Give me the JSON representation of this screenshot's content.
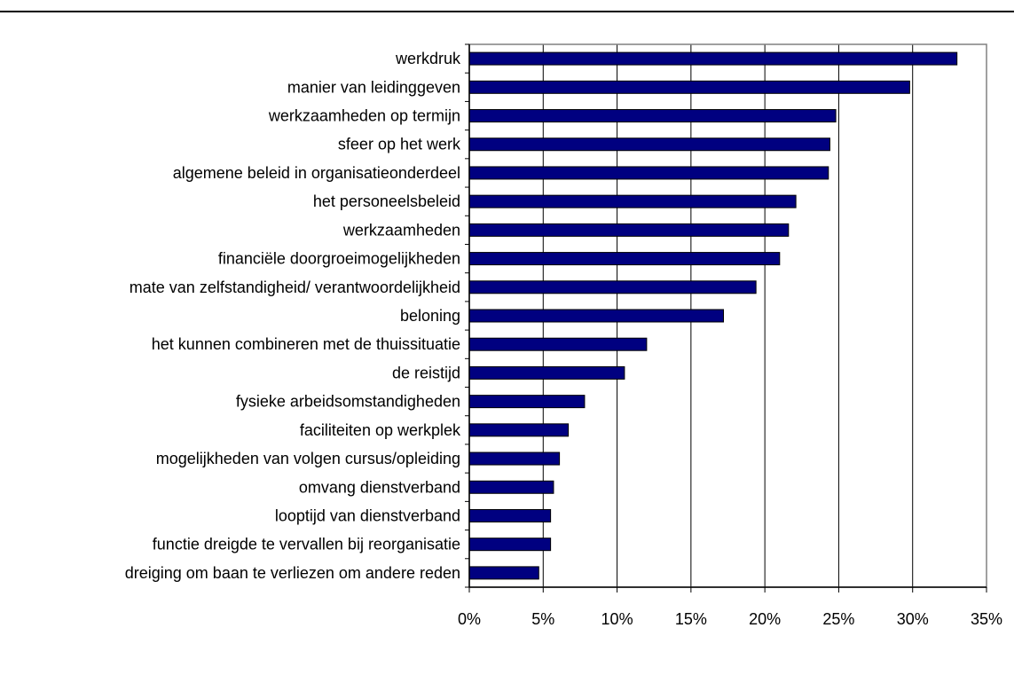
{
  "chart_data": {
    "type": "bar",
    "orientation": "horizontal",
    "title": "",
    "xlabel": "",
    "ylabel": "",
    "xlim": [
      0,
      35
    ],
    "x_tick_values": [
      0,
      5,
      10,
      15,
      20,
      25,
      30,
      35
    ],
    "x_tick_labels": [
      "0%",
      "5%",
      "10%",
      "15%",
      "20%",
      "25%",
      "30%",
      "35%"
    ],
    "grid": "vertical gridlines",
    "legend": "none",
    "bar_color": "#000080",
    "categories": [
      "werkdruk",
      "manier van leidinggeven",
      "werkzaamheden op termijn",
      "sfeer op het werk",
      "algemene beleid in organisatieonderdeel",
      "het personeelsbeleid",
      "werkzaamheden",
      "financiële doorgroeimogelijkheden",
      "mate van zelfstandigheid/ verantwoordelijkheid",
      "beloning",
      "het kunnen combineren met de thuissituatie",
      "de reistijd",
      "fysieke arbeidsomstandigheden",
      "faciliteiten op werkplek",
      "mogelijkheden van volgen cursus/opleiding",
      "omvang dienstverband ",
      "looptijd van dienstverband",
      "functie dreigde te vervallen bij reorganisatie",
      "dreiging om baan te verliezen om andere reden"
    ],
    "values": [
      33.0,
      29.8,
      24.8,
      24.4,
      24.3,
      22.1,
      21.6,
      21.0,
      19.4,
      17.2,
      12.0,
      10.5,
      7.8,
      6.7,
      6.1,
      5.7,
      5.5,
      5.5,
      4.7
    ]
  }
}
